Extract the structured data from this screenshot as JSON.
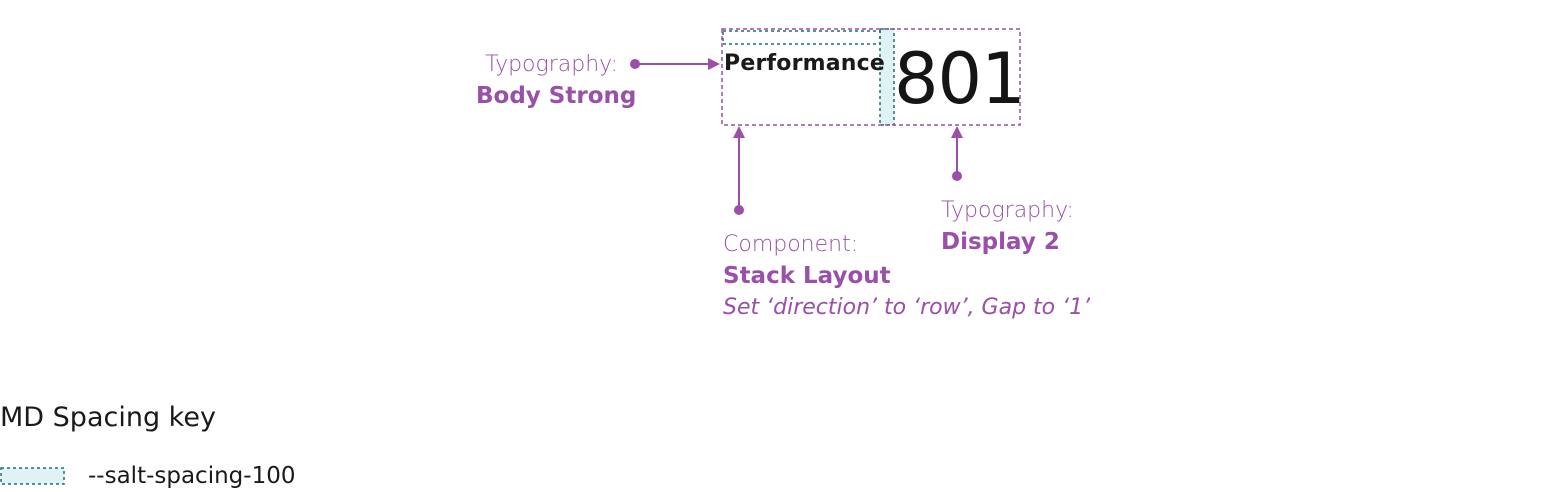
{
  "colors": {
    "annotation": "#9a4fa8",
    "spacing_outline": "#1f6f78",
    "spacing_fill": "#dff3f5",
    "text": "#1a1a1a"
  },
  "example": {
    "label": "Performance",
    "value": "801"
  },
  "annotations": {
    "typography_label": {
      "label": "Typography:",
      "value": "Body Strong"
    },
    "component": {
      "label": "Component:",
      "value": "Stack Layout",
      "note": "Set ‘direction’ to ‘row’, Gap to ‘1’"
    },
    "typography_value": {
      "label": "Typography:",
      "value": "Display 2"
    }
  },
  "spacing_key": {
    "title": "MD Spacing key",
    "items": [
      {
        "token": "--salt-spacing-100",
        "swatch": "dashed-teal"
      }
    ]
  }
}
